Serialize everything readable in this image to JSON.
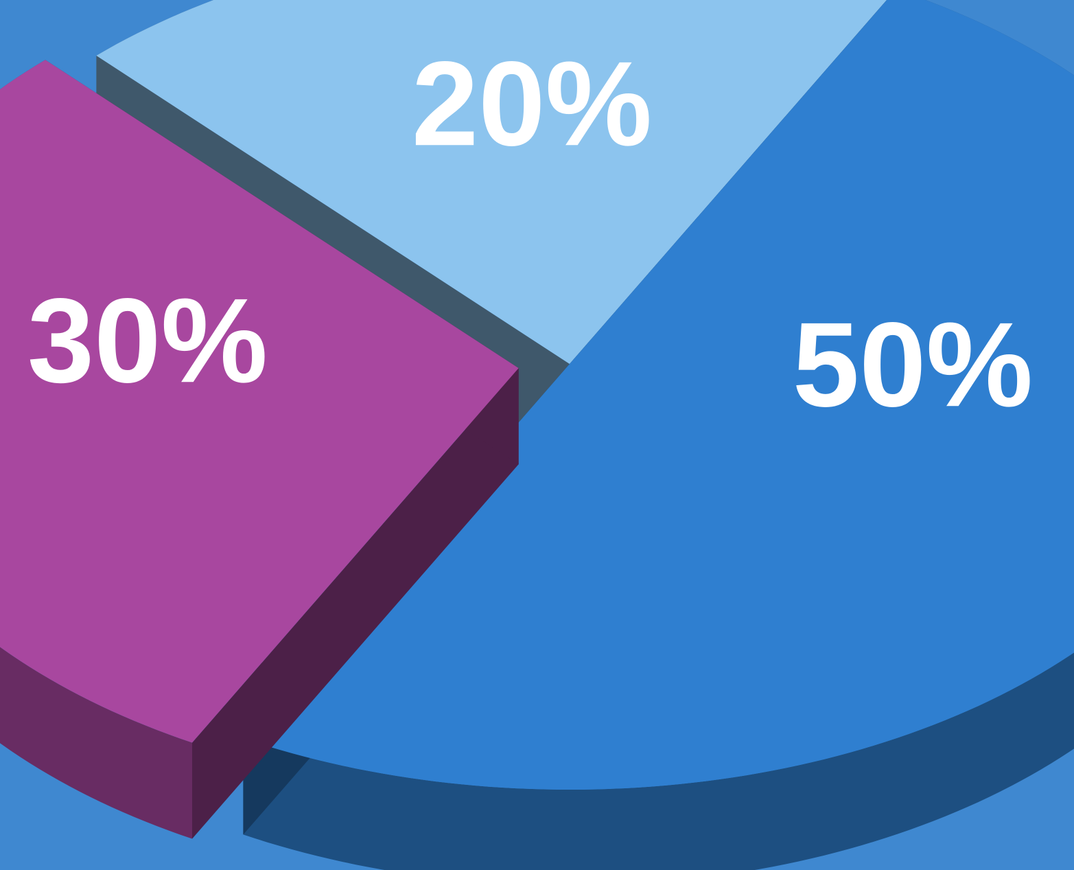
{
  "chart_data": {
    "type": "pie",
    "values": [
      20,
      50,
      30
    ],
    "value_labels": [
      "20%",
      "50%",
      "30%"
    ],
    "colors": [
      "#8cc4ee",
      "#2f7fd0",
      "#a8479f"
    ]
  }
}
